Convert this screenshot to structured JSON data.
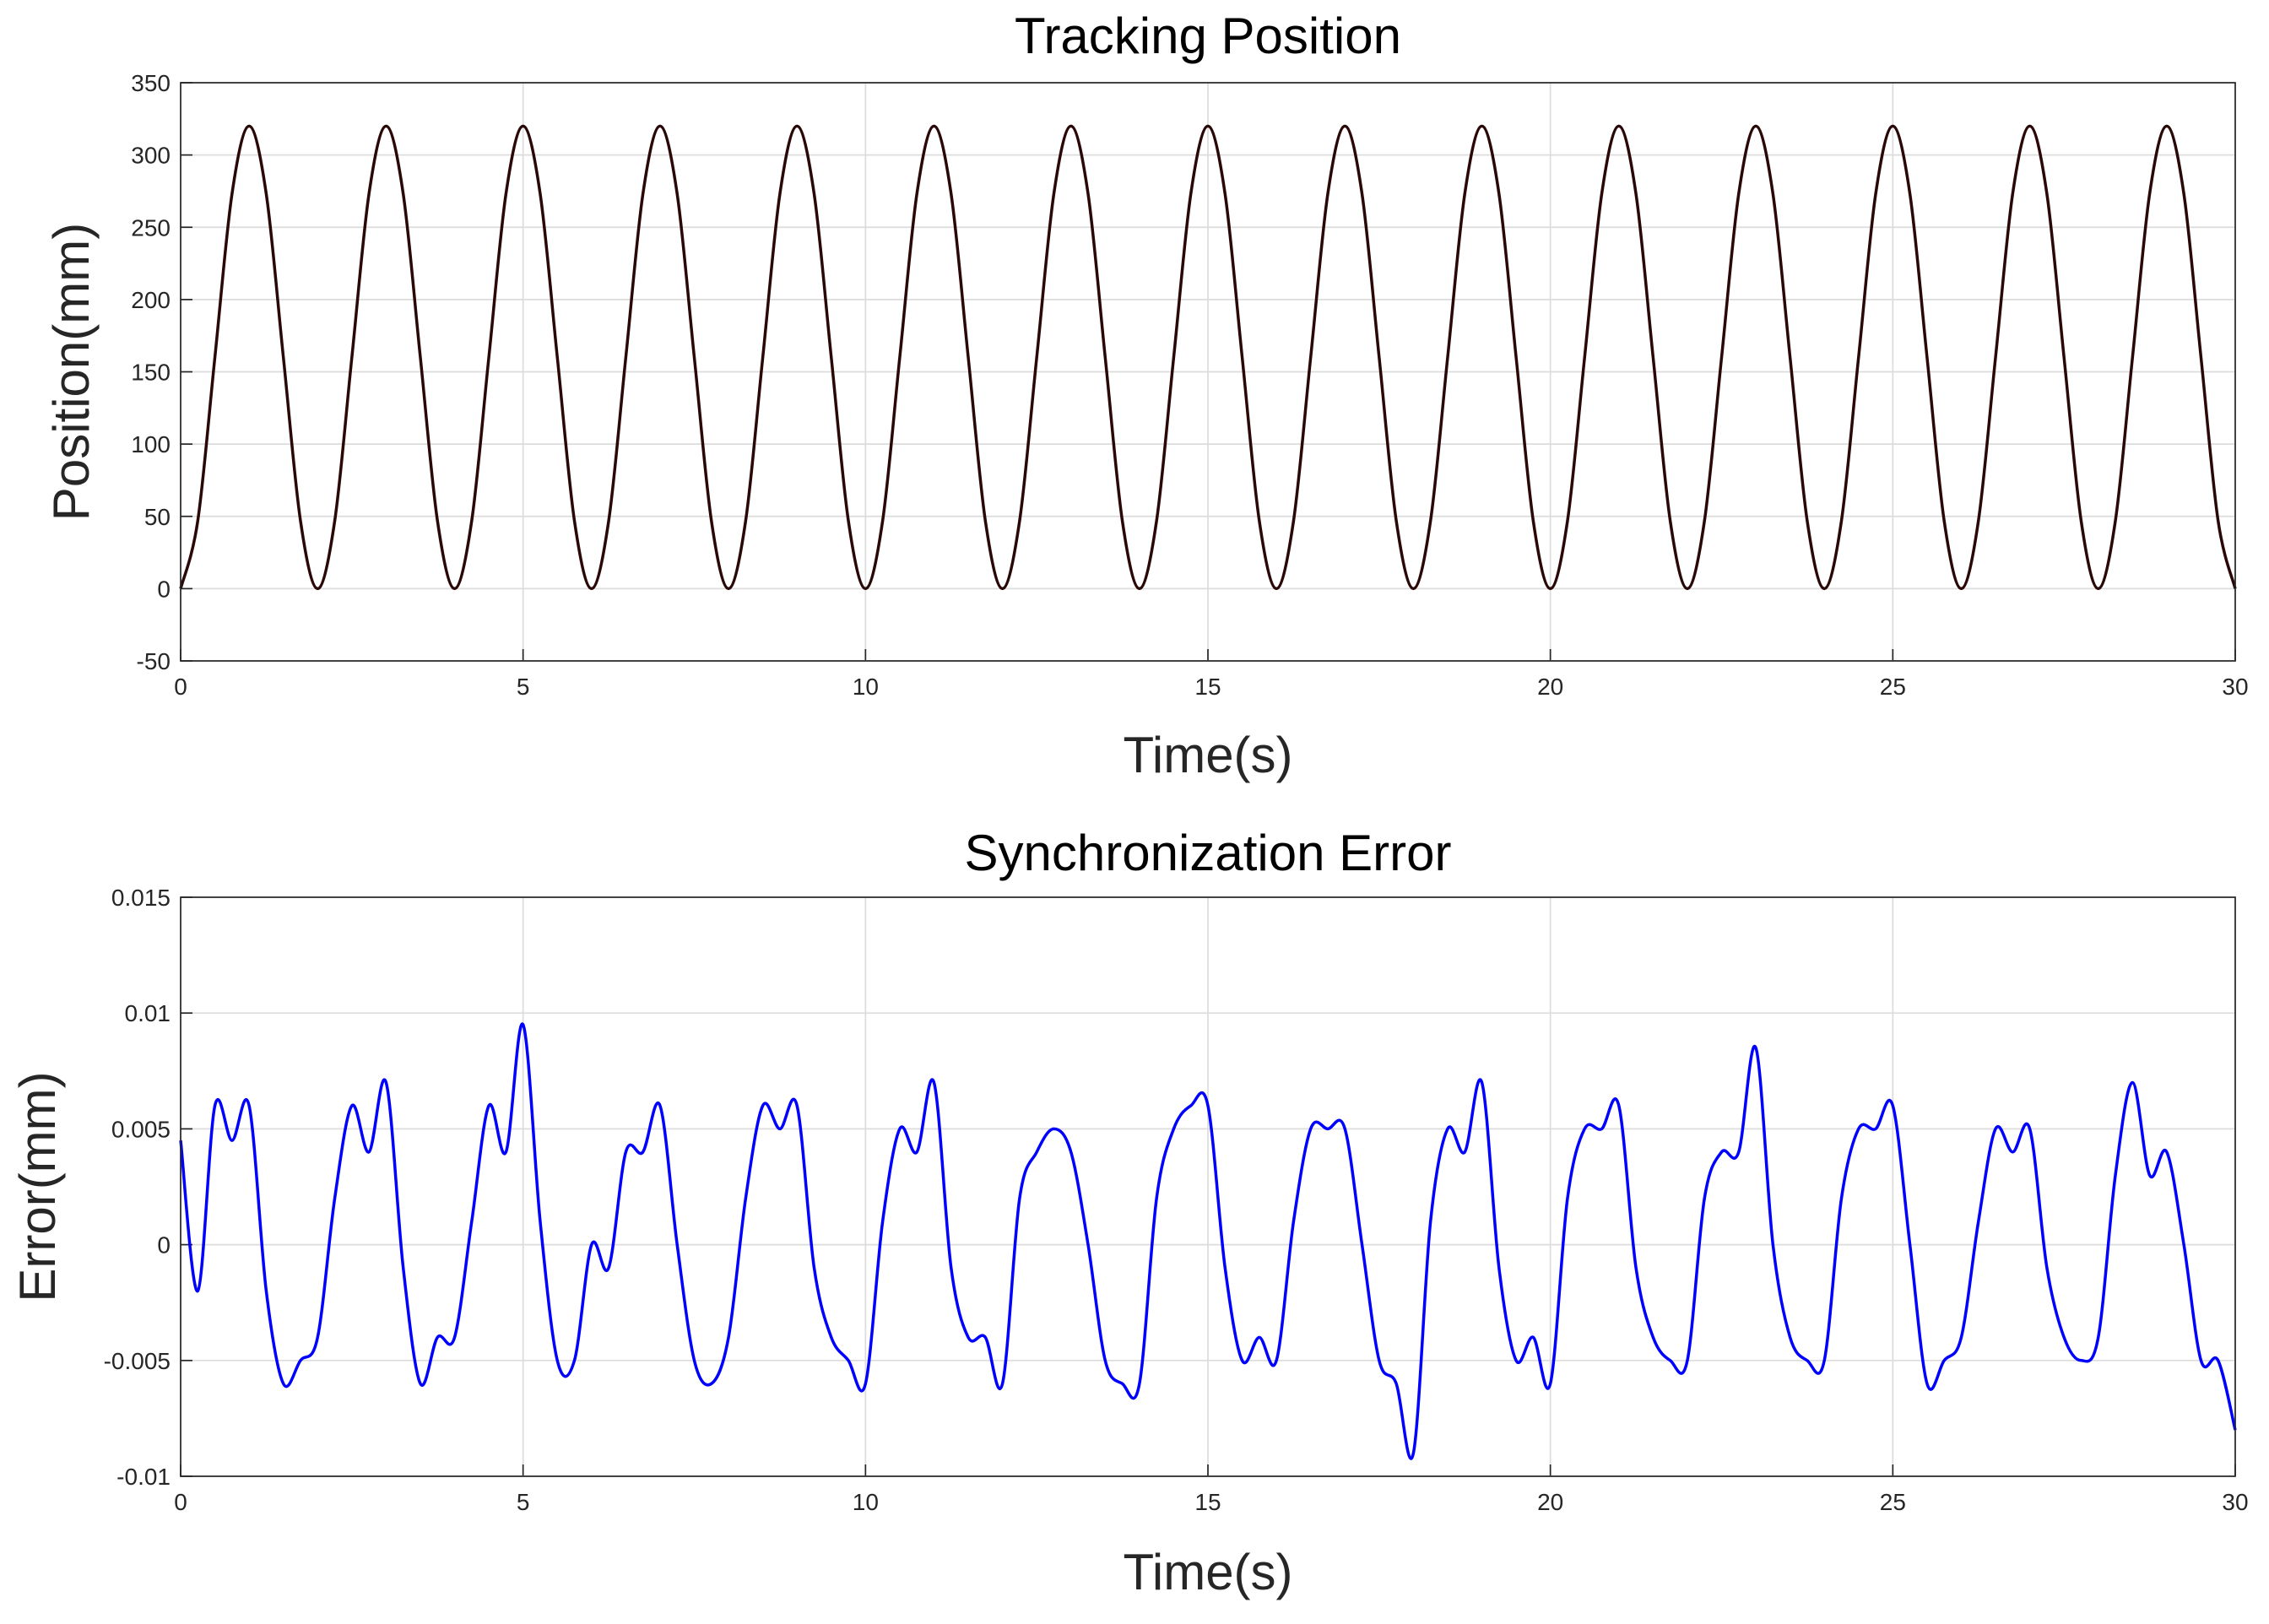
{
  "chart_data": [
    {
      "type": "line",
      "title": "Tracking Position",
      "xlabel": "Time(s)",
      "ylabel": "Position(mm)",
      "x": [
        0,
        0.25,
        0.5,
        0.75,
        1,
        1.25,
        1.5,
        1.75,
        2,
        2.25,
        2.5,
        2.75,
        3,
        3.25,
        3.5,
        3.75,
        4,
        4.25,
        4.5,
        4.75,
        5,
        5.25,
        5.5,
        5.75,
        6,
        6.25,
        6.5,
        6.75,
        7,
        7.25,
        7.5,
        7.75,
        8,
        8.25,
        8.5,
        8.75,
        9,
        9.25,
        9.5,
        9.75,
        10,
        10.25,
        10.5,
        10.75,
        11,
        11.25,
        11.5,
        11.75,
        12,
        12.25,
        12.5,
        12.75,
        13,
        13.25,
        13.5,
        13.75,
        14,
        14.25,
        14.5,
        14.75,
        15,
        15.25,
        15.5,
        15.75,
        16,
        16.25,
        16.5,
        16.75,
        17,
        17.25,
        17.5,
        17.75,
        18,
        18.25,
        18.5,
        18.75,
        19,
        19.25,
        19.5,
        19.75,
        20,
        20.25,
        20.5,
        20.75,
        21,
        21.25,
        21.5,
        21.75,
        22,
        22.25,
        22.5,
        22.75,
        23,
        23.25,
        23.5,
        23.75,
        24,
        24.25,
        24.5,
        24.75,
        25,
        25.25,
        25.5,
        25.75,
        26,
        26.25,
        26.5,
        26.75,
        27,
        27.25,
        27.5,
        27.75,
        28,
        28.25,
        28.5,
        28.75,
        29,
        29.25,
        29.5,
        29.75,
        30
      ],
      "series": [
        {
          "color": "#2a0808",
          "values": [
            0,
            46.9,
            160,
            273.1,
            320,
            273.1,
            160,
            46.9,
            0,
            46.9,
            160,
            273.1,
            320,
            273.1,
            160,
            46.9,
            0,
            46.9,
            160,
            273.1,
            320,
            273.1,
            160,
            46.9,
            0,
            46.9,
            160,
            273.1,
            320,
            273.1,
            160,
            46.9,
            0,
            46.9,
            160,
            273.1,
            320,
            273.1,
            160,
            46.9,
            0,
            46.9,
            160,
            273.1,
            320,
            273.1,
            160,
            46.9,
            0,
            46.9,
            160,
            273.1,
            320,
            273.1,
            160,
            46.9,
            0,
            46.9,
            160,
            273.1,
            320,
            273.1,
            160,
            46.9,
            0,
            46.9,
            160,
            273.1,
            320,
            273.1,
            160,
            46.9,
            0,
            46.9,
            160,
            273.1,
            320,
            273.1,
            160,
            46.9,
            0,
            46.9,
            160,
            273.1,
            320,
            273.1,
            160,
            46.9,
            0,
            46.9,
            160,
            273.1,
            320,
            273.1,
            160,
            46.9,
            0,
            46.9,
            160,
            273.1,
            320,
            273.1,
            160,
            46.9,
            0,
            46.9,
            160,
            273.1,
            320,
            273.1,
            160,
            46.9,
            0,
            46.9,
            160,
            273.1,
            320,
            273.1,
            160,
            46.9,
            0
          ]
        }
      ],
      "xlim": [
        0,
        30
      ],
      "ylim": [
        -50,
        350
      ],
      "xticks": [
        0,
        5,
        10,
        15,
        20,
        25,
        30
      ],
      "yticks": [
        -50,
        0,
        50,
        100,
        150,
        200,
        250,
        300,
        350
      ],
      "grid": true
    },
    {
      "type": "line",
      "title": "Synchronization Error",
      "xlabel": "Time(s)",
      "ylabel": "Error(mm)",
      "x": [
        0,
        0.25,
        0.5,
        0.75,
        1,
        1.25,
        1.5,
        1.75,
        2,
        2.25,
        2.5,
        2.75,
        3,
        3.25,
        3.5,
        3.75,
        4,
        4.25,
        4.5,
        4.75,
        5,
        5.25,
        5.5,
        5.75,
        6,
        6.25,
        6.5,
        6.75,
        7,
        7.25,
        7.5,
        7.75,
        8,
        8.25,
        8.5,
        8.75,
        9,
        9.25,
        9.5,
        9.75,
        10,
        10.25,
        10.5,
        10.75,
        11,
        11.25,
        11.5,
        11.75,
        12,
        12.25,
        12.5,
        12.75,
        13,
        13.25,
        13.5,
        13.75,
        14,
        14.25,
        14.5,
        14.75,
        15,
        15.25,
        15.5,
        15.75,
        16,
        16.25,
        16.5,
        16.75,
        17,
        17.25,
        17.5,
        17.75,
        18,
        18.25,
        18.5,
        18.75,
        19,
        19.25,
        19.5,
        19.75,
        20,
        20.25,
        20.5,
        20.75,
        21,
        21.25,
        21.5,
        21.75,
        22,
        22.25,
        22.5,
        22.75,
        23,
        23.25,
        23.5,
        23.75,
        24,
        24.25,
        24.5,
        24.75,
        25,
        25.25,
        25.5,
        25.75,
        26,
        26.25,
        26.5,
        26.75,
        27,
        27.25,
        27.5,
        27.75,
        28,
        28.25,
        28.5,
        28.75,
        29,
        29.25,
        29.5,
        29.75,
        30
      ],
      "series": [
        {
          "color": "#0000ff",
          "values": [
            0.0045,
            -0.002,
            0.006,
            0.0045,
            0.006,
            -0.002,
            -0.006,
            -0.005,
            -0.004,
            0.002,
            0.006,
            0.004,
            0.007,
            -0.001,
            -0.006,
            -0.004,
            -0.004,
            0.001,
            0.006,
            0.004,
            0.0095,
            0.001,
            -0.005,
            -0.005,
            0,
            -0.001,
            0.004,
            0.004,
            0.006,
            0,
            -0.005,
            -0.006,
            -0.004,
            0.002,
            0.006,
            0.005,
            0.006,
            -0.001,
            -0.004,
            -0.005,
            -0.006,
            0.001,
            0.005,
            0.004,
            0.007,
            -0.001,
            -0.004,
            -0.004,
            -0.006,
            0.002,
            0.004,
            0.005,
            0.004,
            0,
            -0.005,
            -0.006,
            -0.006,
            0.002,
            0.005,
            0.006,
            0.006,
            -0.001,
            -0.005,
            -0.004,
            -0.005,
            0.001,
            0.005,
            0.005,
            0.005,
            0,
            -0.005,
            -0.006,
            -0.009,
            0.001,
            0.005,
            0.004,
            0.007,
            -0.001,
            -0.005,
            -0.004,
            -0.006,
            0.002,
            0.005,
            0.005,
            0.006,
            -0.001,
            -0.004,
            -0.005,
            -0.005,
            0.002,
            0.004,
            0.004,
            0.0085,
            0,
            -0.004,
            -0.005,
            -0.005,
            0.002,
            0.005,
            0.005,
            0.006,
            0,
            -0.006,
            -0.005,
            -0.004,
            0.001,
            0.005,
            0.004,
            0.005,
            -0.001,
            -0.004,
            -0.005,
            -0.004,
            0.003,
            0.007,
            0.003,
            0.004,
            0,
            -0.005,
            -0.005,
            -0.008
          ]
        }
      ],
      "xlim": [
        0,
        30
      ],
      "ylim": [
        -0.01,
        0.015
      ],
      "xticks": [
        0,
        5,
        10,
        15,
        20,
        25,
        30
      ],
      "yticks": [
        -0.01,
        -0.005,
        0,
        0.005,
        0.01,
        0.015
      ],
      "grid": true
    }
  ]
}
